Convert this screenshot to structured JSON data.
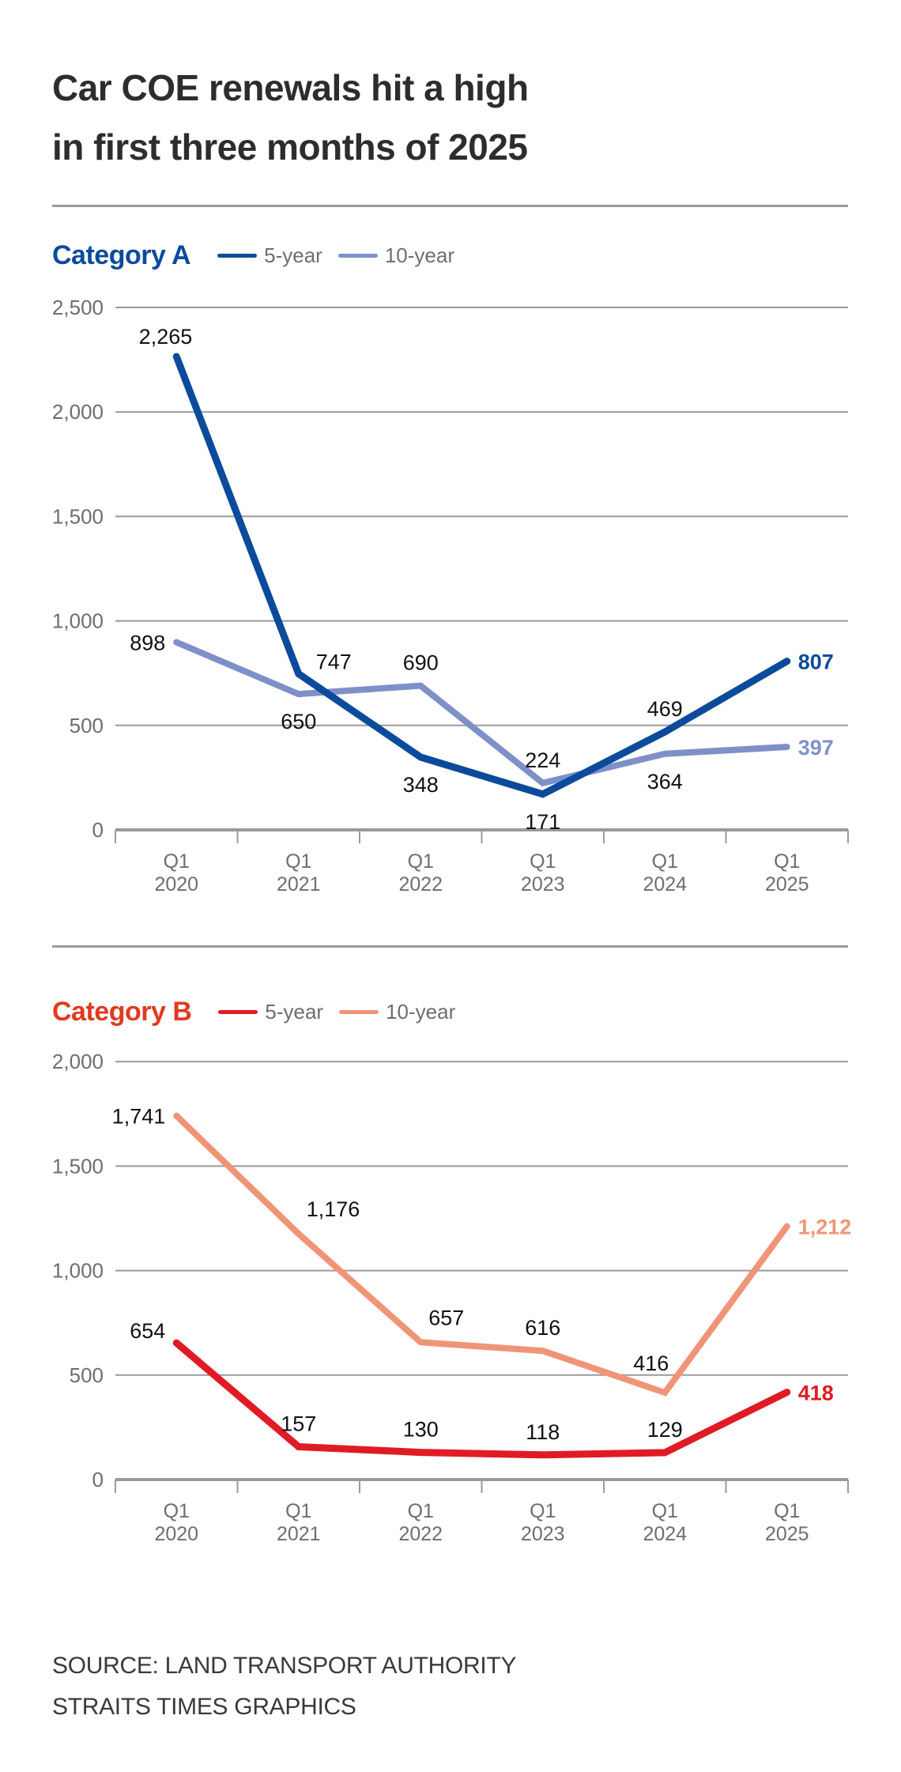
{
  "title_lines": [
    "Car COE renewals hit a high",
    "in first three months of 2025"
  ],
  "legend_labels": {
    "five_year": "5-year",
    "ten_year": "10-year"
  },
  "colors": {
    "title": "#2d2d2d",
    "grid": "#9a9a9a",
    "tick_label": "#6e6e6e",
    "data_label": "#111111",
    "cat_a_title": "#0c4b9b",
    "cat_a_5yr": "#0c4b9b",
    "cat_a_10yr": "#7f90c9",
    "cat_b_title": "#e2391f",
    "cat_b_5yr": "#e01b25",
    "cat_b_10yr": "#f09478"
  },
  "chart_data": [
    {
      "type": "line",
      "title": "Category A",
      "categories": [
        "Q1 2020",
        "Q1 2021",
        "Q1 2022",
        "Q1 2023",
        "Q1 2024",
        "Q1 2025"
      ],
      "category_lines": [
        [
          "Q1",
          "2020"
        ],
        [
          "Q1",
          "2021"
        ],
        [
          "Q1",
          "2022"
        ],
        [
          "Q1",
          "2023"
        ],
        [
          "Q1",
          "2024"
        ],
        [
          "Q1",
          "2025"
        ]
      ],
      "ylim": [
        0,
        2500
      ],
      "yticks": [
        0,
        500,
        1000,
        1500,
        2000,
        2500
      ],
      "ytick_labels": [
        "0",
        "500",
        "1,000",
        "1,500",
        "2,000",
        "2,500"
      ],
      "grid": true,
      "legend": "top-left",
      "xlabel": "",
      "ylabel": "",
      "series": [
        {
          "name": "5-year",
          "color_key": "cat_a_5yr",
          "values": [
            2265,
            747,
            348,
            171,
            469,
            807
          ],
          "labels": [
            "2,265",
            "747",
            "348",
            "171",
            "469",
            "807"
          ],
          "label_positions": [
            "above-left",
            "right",
            "below",
            "below",
            "above",
            "end"
          ]
        },
        {
          "name": "10-year",
          "color_key": "cat_a_10yr",
          "values": [
            898,
            650,
            690,
            224,
            364,
            397
          ],
          "labels": [
            "898",
            "650",
            "690",
            "224",
            "364",
            "397"
          ],
          "label_positions": [
            "left",
            "below",
            "above",
            "above",
            "below",
            "end"
          ]
        }
      ]
    },
    {
      "type": "line",
      "title": "Category B",
      "categories": [
        "Q1 2020",
        "Q1 2021",
        "Q1 2022",
        "Q1 2023",
        "Q1 2024",
        "Q1 2025"
      ],
      "category_lines": [
        [
          "Q1",
          "2020"
        ],
        [
          "Q1",
          "2021"
        ],
        [
          "Q1",
          "2022"
        ],
        [
          "Q1",
          "2023"
        ],
        [
          "Q1",
          "2024"
        ],
        [
          "Q1",
          "2025"
        ]
      ],
      "ylim": [
        0,
        2000
      ],
      "yticks": [
        0,
        500,
        1000,
        1500,
        2000
      ],
      "ytick_labels": [
        "0",
        "500",
        "1,000",
        "1,500",
        "2,000"
      ],
      "grid": true,
      "legend": "top-left",
      "xlabel": "",
      "ylabel": "",
      "series": [
        {
          "name": "5-year",
          "color_key": "cat_b_5yr",
          "values": [
            654,
            157,
            130,
            118,
            129,
            418
          ],
          "labels": [
            "654",
            "157",
            "130",
            "118",
            "129",
            "418"
          ],
          "label_positions": [
            "left",
            "above",
            "above",
            "above",
            "above",
            "end"
          ]
        },
        {
          "name": "10-year",
          "color_key": "cat_b_10yr",
          "values": [
            1741,
            1176,
            657,
            616,
            416,
            1212
          ],
          "labels": [
            "1,741",
            "1,176",
            "657",
            "616",
            "416",
            "1,212"
          ],
          "label_positions": [
            "left",
            "above-right",
            "above-right",
            "above",
            "above-left",
            "end"
          ]
        }
      ]
    }
  ],
  "footer": {
    "source": "SOURCE: LAND TRANSPORT AUTHORITY",
    "credit": "STRAITS TIMES GRAPHICS"
  }
}
